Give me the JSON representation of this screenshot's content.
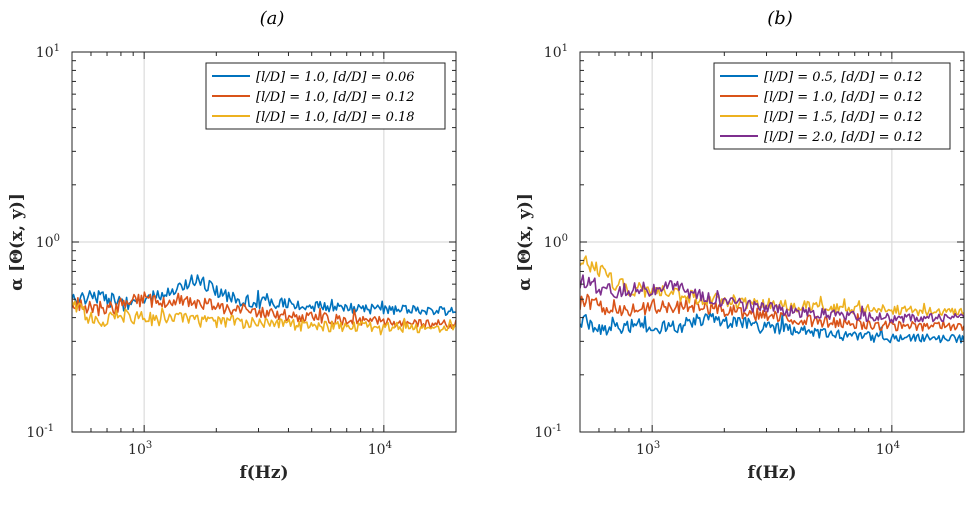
{
  "chart_data": [
    {
      "type": "line",
      "panel_title": "(a)",
      "xlabel": "f(Hz)",
      "ylabel": "α [Θ(x, y)]",
      "xscale": "log",
      "yscale": "log",
      "xlim": [
        500,
        20000
      ],
      "ylim": [
        0.1,
        10
      ],
      "xticks": [
        {
          "base": "10",
          "exp": "3",
          "value": 1000
        },
        {
          "base": "10",
          "exp": "4",
          "value": 10000
        }
      ],
      "yticks": [
        {
          "base": "10",
          "exp": "-1",
          "value": 0.1
        },
        {
          "base": "10",
          "exp": "0",
          "value": 1
        },
        {
          "base": "10",
          "exp": "1",
          "value": 10
        }
      ],
      "grid": true,
      "legend_position": "top-right",
      "series": [
        {
          "name": "[l/D] = 1.0,  [d/D] = 0.06",
          "color": "#0072BD",
          "x": [
            500,
            600,
            700,
            850,
            1000,
            1200,
            1400,
            1600,
            1800,
            2000,
            2500,
            3000,
            4000,
            5000,
            7000,
            10000,
            14000,
            20000
          ],
          "y": [
            0.49,
            0.53,
            0.5,
            0.47,
            0.5,
            0.52,
            0.58,
            0.63,
            0.6,
            0.55,
            0.5,
            0.48,
            0.47,
            0.46,
            0.45,
            0.44,
            0.44,
            0.43
          ]
        },
        {
          "name": "[l/D] = 1.0,  [d/D] = 0.12",
          "color": "#D95319",
          "x": [
            500,
            600,
            700,
            850,
            1000,
            1200,
            1400,
            1600,
            1800,
            2000,
            2500,
            3000,
            4000,
            5000,
            7000,
            10000,
            14000,
            20000
          ],
          "y": [
            0.48,
            0.46,
            0.44,
            0.48,
            0.5,
            0.47,
            0.5,
            0.46,
            0.48,
            0.44,
            0.45,
            0.43,
            0.41,
            0.4,
            0.39,
            0.38,
            0.37,
            0.37
          ]
        },
        {
          "name": "[l/D] = 1.0,  [d/D] = 0.18",
          "color": "#EDB120",
          "x": [
            500,
            600,
            700,
            850,
            1000,
            1200,
            1400,
            1600,
            1800,
            2000,
            2500,
            3000,
            4000,
            5000,
            7000,
            10000,
            14000,
            20000
          ],
          "y": [
            0.47,
            0.4,
            0.39,
            0.41,
            0.4,
            0.39,
            0.4,
            0.39,
            0.38,
            0.38,
            0.38,
            0.37,
            0.37,
            0.36,
            0.36,
            0.36,
            0.35,
            0.35
          ]
        }
      ]
    },
    {
      "type": "line",
      "panel_title": "(b)",
      "xlabel": "f(Hz)",
      "ylabel": "α [Θ(x, y)]",
      "xscale": "log",
      "yscale": "log",
      "xlim": [
        500,
        20000
      ],
      "ylim": [
        0.1,
        10
      ],
      "xticks": [
        {
          "base": "10",
          "exp": "3",
          "value": 1000
        },
        {
          "base": "10",
          "exp": "4",
          "value": 10000
        }
      ],
      "yticks": [
        {
          "base": "10",
          "exp": "-1",
          "value": 0.1
        },
        {
          "base": "10",
          "exp": "0",
          "value": 1
        },
        {
          "base": "10",
          "exp": "1",
          "value": 10
        }
      ],
      "grid": true,
      "legend_position": "top-right",
      "series": [
        {
          "name": "[l/D] = 0.5,  [d/D] = 0.12",
          "color": "#0072BD",
          "x": [
            500,
            600,
            700,
            850,
            1000,
            1200,
            1400,
            1600,
            1800,
            2000,
            2500,
            3000,
            4000,
            5000,
            7000,
            10000,
            14000,
            20000
          ],
          "y": [
            0.39,
            0.36,
            0.35,
            0.37,
            0.36,
            0.35,
            0.37,
            0.39,
            0.4,
            0.38,
            0.37,
            0.36,
            0.34,
            0.33,
            0.32,
            0.31,
            0.31,
            0.31
          ]
        },
        {
          "name": "[l/D] = 1.0,  [d/D] = 0.12",
          "color": "#D95319",
          "x": [
            500,
            600,
            700,
            850,
            1000,
            1200,
            1400,
            1600,
            1800,
            2000,
            2500,
            3000,
            4000,
            5000,
            7000,
            10000,
            14000,
            20000
          ],
          "y": [
            0.48,
            0.46,
            0.45,
            0.44,
            0.46,
            0.44,
            0.47,
            0.45,
            0.46,
            0.44,
            0.42,
            0.41,
            0.39,
            0.38,
            0.37,
            0.36,
            0.36,
            0.36
          ]
        },
        {
          "name": "[l/D] = 1.5,  [d/D] = 0.12",
          "color": "#EDB120",
          "x": [
            500,
            600,
            700,
            850,
            1000,
            1200,
            1400,
            1600,
            1800,
            2000,
            2500,
            3000,
            4000,
            5000,
            7000,
            10000,
            14000,
            20000
          ],
          "y": [
            0.82,
            0.72,
            0.6,
            0.56,
            0.55,
            0.54,
            0.52,
            0.5,
            0.5,
            0.49,
            0.48,
            0.47,
            0.46,
            0.45,
            0.44,
            0.44,
            0.43,
            0.43
          ]
        },
        {
          "name": "[l/D] = 2.0,  [d/D] = 0.12",
          "color": "#7E2F8E",
          "x": [
            500,
            600,
            700,
            850,
            1000,
            1200,
            1400,
            1600,
            1800,
            2000,
            2500,
            3000,
            4000,
            5000,
            7000,
            10000,
            14000,
            20000
          ],
          "y": [
            0.62,
            0.58,
            0.55,
            0.57,
            0.56,
            0.6,
            0.55,
            0.52,
            0.5,
            0.48,
            0.46,
            0.45,
            0.43,
            0.42,
            0.41,
            0.4,
            0.4,
            0.4
          ]
        }
      ]
    }
  ]
}
